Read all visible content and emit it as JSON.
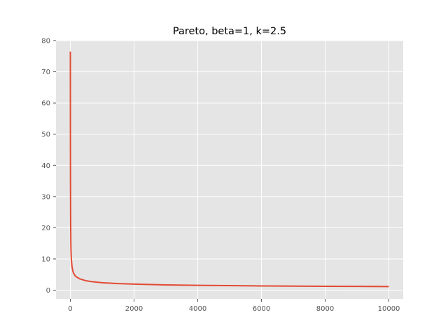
{
  "chart_data": {
    "type": "line",
    "title": "Pareto, beta=1, k=2.5",
    "xlabel": "",
    "ylabel": "",
    "xlim": [
      -450,
      10450
    ],
    "ylim": [
      -2.8,
      80
    ],
    "xticks": [
      0,
      2000,
      4000,
      6000,
      8000,
      10000
    ],
    "xtick_labels": [
      "0",
      "2000",
      "4000",
      "6000",
      "8000",
      "10000"
    ],
    "yticks": [
      0,
      10,
      20,
      30,
      40,
      50,
      60,
      70,
      80
    ],
    "ytick_labels": [
      "0",
      "10",
      "20",
      "30",
      "40",
      "50",
      "60",
      "70",
      "80"
    ],
    "grid": true,
    "style": {
      "background": "#e5e5e5",
      "grid_color": "#ffffff",
      "line_color": "#e24a33"
    },
    "series": [
      {
        "x": [
          1,
          2,
          3,
          5,
          8,
          10,
          15,
          20,
          30,
          50,
          75,
          100,
          150,
          200,
          300,
          400,
          500,
          700,
          1000,
          1500,
          2000,
          3000,
          4000,
          5000,
          6000,
          7000,
          8000,
          9000,
          10000
        ],
        "values": [
          76.5,
          58.0,
          48.0,
          35.5,
          26.0,
          22.0,
          16.2,
          12.9,
          10.2,
          7.8,
          6.3,
          5.5,
          4.6,
          4.2,
          3.6,
          3.3,
          3.0,
          2.7,
          2.4,
          2.1,
          1.95,
          1.7,
          1.55,
          1.45,
          1.35,
          1.3,
          1.25,
          1.2,
          1.15
        ]
      }
    ]
  }
}
